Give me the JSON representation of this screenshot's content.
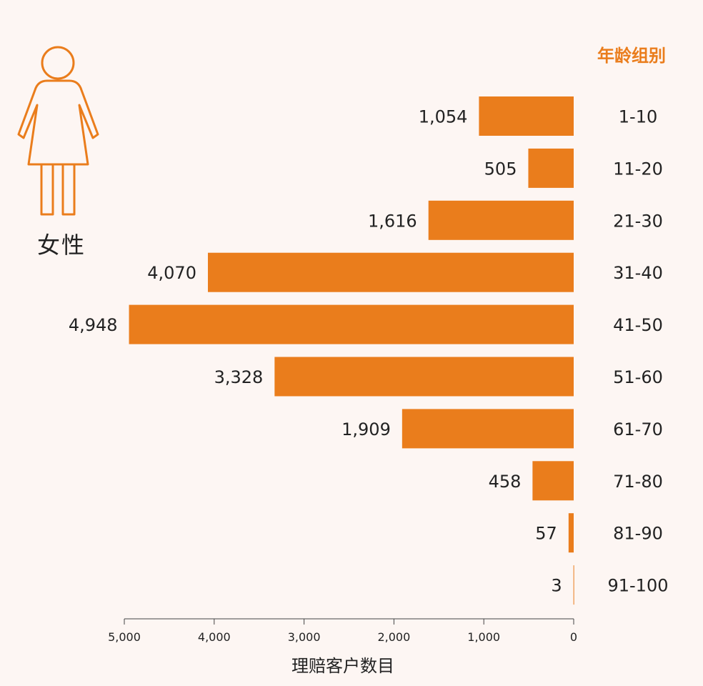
{
  "legend_icon": "female-person-icon",
  "gender_label": "女性",
  "group_header": "年龄组别",
  "colors": {
    "bar": "#ea7d1c",
    "icon": "#ea7d1c",
    "text": "#222222",
    "background": "#fdf6f3",
    "axis": "#444444"
  },
  "chart_data": {
    "type": "bar",
    "orientation": "horizontal",
    "direction": "right-to-left",
    "title": "",
    "xlabel": "理赔客户数目",
    "ylabel": "年龄组别",
    "categories": [
      "1-10",
      "11-20",
      "21-30",
      "31-40",
      "41-50",
      "51-60",
      "61-70",
      "71-80",
      "81-90",
      "91-100"
    ],
    "values": [
      1054,
      505,
      1616,
      4070,
      4948,
      3328,
      1909,
      458,
      57,
      3
    ],
    "value_labels": [
      "1,054",
      "505",
      "1,616",
      "4,070",
      "4,948",
      "3,328",
      "1,909",
      "458",
      "57",
      "3"
    ],
    "xlim": [
      0,
      5000
    ],
    "x_ticks": [
      5000,
      4000,
      3000,
      2000,
      1000,
      0
    ],
    "x_tick_labels": [
      "5,000",
      "4,000",
      "3,000",
      "2,000",
      "1,000",
      "0"
    ],
    "grid": false
  }
}
